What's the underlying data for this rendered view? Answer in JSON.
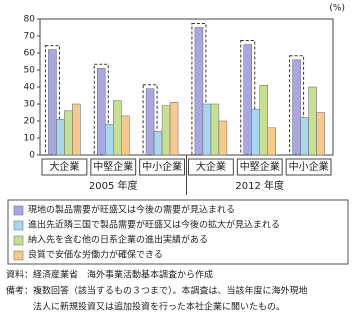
{
  "chart_data": {
    "type": "bar",
    "unit": "(%)",
    "categories": [
      "大企業",
      "中堅企業",
      "中小企業",
      "大企業",
      "中堅企業",
      "中小企業"
    ],
    "groups": [
      "2005 年度",
      "2012 年度"
    ],
    "series": [
      {
        "name": "現地の製品需要が旺盛又は今後の需要が見込まれる",
        "color": "#a9a7e2",
        "values": [
          62,
          51,
          39,
          75,
          65,
          56
        ]
      },
      {
        "name": "進出先近隣三国で製品需要が旺盛又は今後の拡大が見込まれる",
        "color": "#a9d6ea",
        "values": [
          21,
          18,
          14,
          30,
          27,
          22
        ]
      },
      {
        "name": "納入先を含む他の日系企業の進出実績がある",
        "color": "#c6df92",
        "values": [
          26,
          32,
          29,
          30,
          41,
          40
        ]
      },
      {
        "name": "良質で安価な労働力が確保できる",
        "color": "#f6ca8e",
        "values": [
          30,
          23,
          31,
          20,
          16,
          25
        ]
      }
    ],
    "ylim": [
      0,
      80
    ],
    "yticks": [
      0,
      10,
      20,
      30,
      40,
      50,
      60,
      70,
      80
    ]
  },
  "notes": [
    "資料：経済産業省　海外事業活動基本調査から作成",
    "備考：複数回答（該当するもの３つまで）。本調査は、当該年度に海外現地",
    "　　　法人に新規投資又は追加投資を行った本社企業に聞いたもの。"
  ]
}
